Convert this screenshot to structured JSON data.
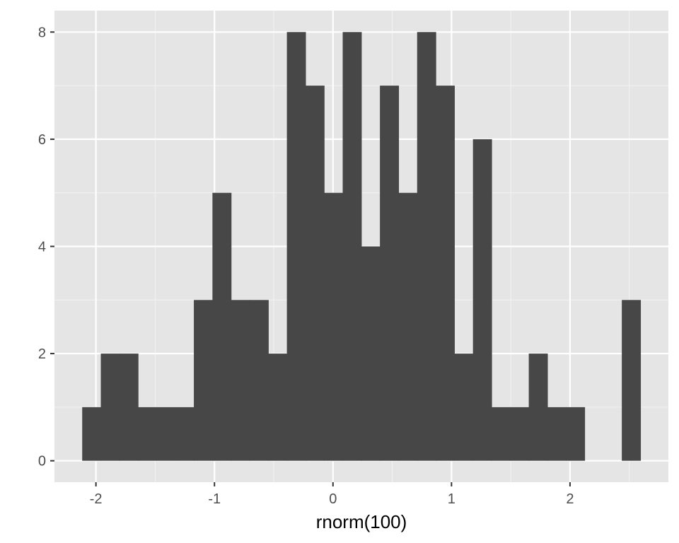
{
  "chart_data": {
    "type": "bar",
    "title": "",
    "xlabel": "rnorm(100)",
    "ylabel": "",
    "bin_width": 0.157,
    "bins": [
      {
        "x_start": -2.116,
        "x_end": -1.959,
        "count": 1
      },
      {
        "x_start": -1.959,
        "x_end": -1.802,
        "count": 2
      },
      {
        "x_start": -1.802,
        "x_end": -1.645,
        "count": 2
      },
      {
        "x_start": -1.645,
        "x_end": -1.488,
        "count": 1
      },
      {
        "x_start": -1.488,
        "x_end": -1.331,
        "count": 1
      },
      {
        "x_start": -1.331,
        "x_end": -1.174,
        "count": 1
      },
      {
        "x_start": -1.174,
        "x_end": -1.017,
        "count": 3
      },
      {
        "x_start": -1.017,
        "x_end": -0.86,
        "count": 5
      },
      {
        "x_start": -0.86,
        "x_end": -0.703,
        "count": 3
      },
      {
        "x_start": -0.703,
        "x_end": -0.546,
        "count": 3
      },
      {
        "x_start": -0.546,
        "x_end": -0.389,
        "count": 2
      },
      {
        "x_start": -0.389,
        "x_end": -0.232,
        "count": 8
      },
      {
        "x_start": -0.232,
        "x_end": -0.075,
        "count": 7
      },
      {
        "x_start": -0.075,
        "x_end": 0.082,
        "count": 5
      },
      {
        "x_start": 0.082,
        "x_end": 0.239,
        "count": 8
      },
      {
        "x_start": 0.239,
        "x_end": 0.396,
        "count": 4
      },
      {
        "x_start": 0.396,
        "x_end": 0.553,
        "count": 7
      },
      {
        "x_start": 0.553,
        "x_end": 0.71,
        "count": 5
      },
      {
        "x_start": 0.71,
        "x_end": 0.867,
        "count": 8
      },
      {
        "x_start": 0.867,
        "x_end": 1.024,
        "count": 7
      },
      {
        "x_start": 1.024,
        "x_end": 1.181,
        "count": 2
      },
      {
        "x_start": 1.181,
        "x_end": 1.338,
        "count": 6
      },
      {
        "x_start": 1.338,
        "x_end": 1.495,
        "count": 1
      },
      {
        "x_start": 1.495,
        "x_end": 1.652,
        "count": 1
      },
      {
        "x_start": 1.652,
        "x_end": 1.809,
        "count": 2
      },
      {
        "x_start": 1.809,
        "x_end": 1.966,
        "count": 1
      },
      {
        "x_start": 1.966,
        "x_end": 2.123,
        "count": 1
      },
      {
        "x_start": 2.123,
        "x_end": 2.28,
        "count": 0
      },
      {
        "x_start": 2.28,
        "x_end": 2.437,
        "count": 0
      },
      {
        "x_start": 2.437,
        "x_end": 2.594,
        "count": 3
      }
    ],
    "xlim": [
      -2.35,
      2.83
    ],
    "ylim": [
      -0.4,
      8.4
    ],
    "x_ticks": [
      -2,
      -1,
      0,
      1,
      2
    ],
    "x_tick_labels": [
      "-2",
      "-1",
      "0",
      "1",
      "2"
    ],
    "y_ticks": [
      0,
      2,
      4,
      6,
      8
    ],
    "y_tick_labels": [
      "0",
      "2",
      "4",
      "6",
      "8"
    ],
    "grid": true,
    "colors": {
      "panel_background": "#e5e5e5",
      "grid_major": "#ffffff",
      "grid_minor": "#f2f2f2",
      "bar_fill": "#474747",
      "tick_text": "#4d4d4d",
      "axis_title_text": "#000000"
    }
  }
}
